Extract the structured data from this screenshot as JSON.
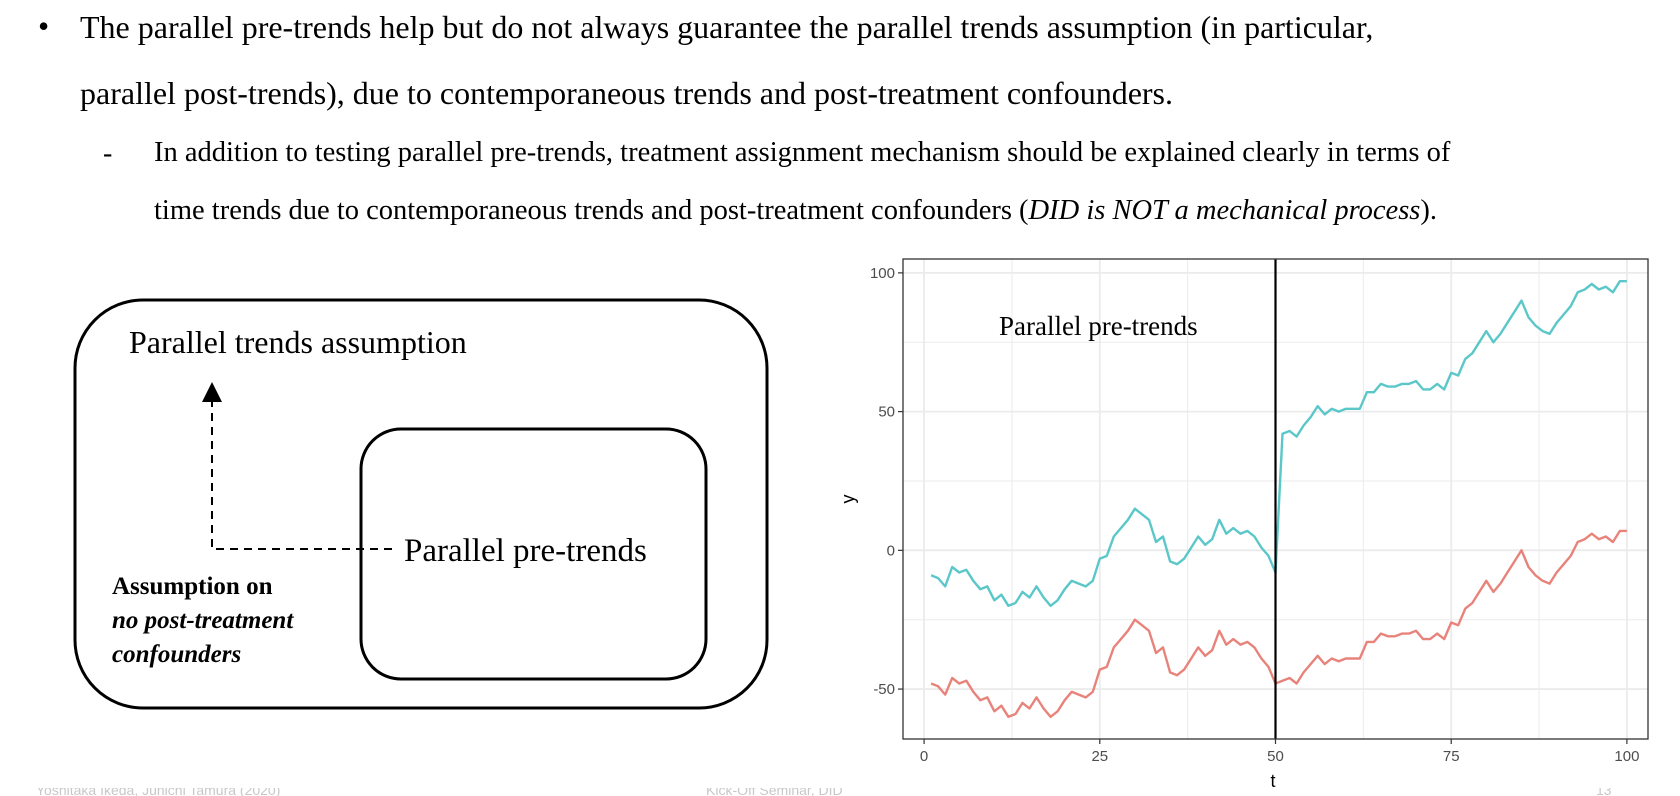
{
  "text": {
    "bullet_marker": "•",
    "bullet_line1": "The parallel pre-trends help but do not always guarantee the parallel trends assumption (in particular,",
    "bullet_line2": "parallel post-trends), due to contemporaneous trends and post-treatment confounders.",
    "sub_marker": "-",
    "sub_line1": "In addition to testing parallel pre-trends, treatment assignment mechanism should be explained clearly in terms of",
    "sub_line2_a": "time trends due to contemporaneous trends and post-treatment confounders (",
    "sub_line2_italic": "DID is NOT a mechanical process",
    "sub_line2_b": ")."
  },
  "diagram": {
    "outer_label": "Parallel trends assumption",
    "inner_label": "Parallel pre-trends",
    "assumption_line1": "Assumption on",
    "assumption_line2": "no post-treatment",
    "assumption_line3": "confounders"
  },
  "footer": {
    "left": "Yoshitaka Ikeda, Junichi Tamura (2020)",
    "center": "Kick-Off Seminar, DID",
    "right": "13"
  },
  "chart_data": {
    "type": "line",
    "annotation": "Parallel pre-trends",
    "xlabel": "t",
    "ylabel": "y",
    "xlim": [
      -3,
      103
    ],
    "ylim": [
      -68,
      105
    ],
    "x_ticks": [
      0,
      25,
      50,
      75,
      100
    ],
    "y_ticks": [
      -50,
      0,
      50,
      100
    ],
    "vline_x": 50,
    "grid": true,
    "colors": {
      "upper": "#5bc7c9",
      "lower": "#e8837b",
      "vline": "#000000",
      "grid": "#ebebeb"
    },
    "series": [
      {
        "key": "upper",
        "x": [
          1,
          2,
          3,
          4,
          5,
          6,
          7,
          8,
          9,
          10,
          11,
          12,
          13,
          14,
          15,
          16,
          17,
          18,
          19,
          20,
          21,
          22,
          23,
          24,
          25,
          26,
          27,
          28,
          29,
          30,
          31,
          32,
          33,
          34,
          35,
          36,
          37,
          38,
          39,
          40,
          41,
          42,
          43,
          44,
          45,
          46,
          47,
          48,
          49,
          50,
          51,
          52,
          53,
          54,
          55,
          56,
          57,
          58,
          59,
          60,
          61,
          62,
          63,
          64,
          65,
          66,
          67,
          68,
          69,
          70,
          71,
          72,
          73,
          74,
          75,
          76,
          77,
          78,
          79,
          80,
          81,
          82,
          83,
          84,
          85,
          86,
          87,
          88,
          89,
          90,
          91,
          92,
          93,
          94,
          95,
          96,
          97,
          98,
          99,
          100
        ],
        "values": [
          -9,
          -10,
          -13,
          -6,
          -8,
          -7,
          -11,
          -14,
          -13,
          -18,
          -16,
          -20,
          -19,
          -15,
          -17,
          -13,
          -17,
          -20,
          -18,
          -14,
          -11,
          -12,
          -13,
          -11,
          -3,
          -2,
          5,
          8,
          11,
          15,
          13,
          11,
          3,
          5,
          -4,
          -5,
          -3,
          1,
          5,
          2,
          4,
          11,
          6,
          8,
          6,
          7,
          5,
          1,
          -2,
          -8,
          42,
          43,
          41,
          45,
          48,
          52,
          49,
          51,
          50,
          51,
          51,
          51,
          57,
          57,
          60,
          59,
          59,
          60,
          60,
          61,
          58,
          58,
          60,
          58,
          64,
          63,
          69,
          71,
          75,
          79,
          75,
          78,
          82,
          86,
          90,
          84,
          81,
          79,
          78,
          82,
          85,
          88,
          93,
          94,
          96,
          94,
          95,
          93,
          97,
          97
        ]
      },
      {
        "key": "lower",
        "x": [
          1,
          2,
          3,
          4,
          5,
          6,
          7,
          8,
          9,
          10,
          11,
          12,
          13,
          14,
          15,
          16,
          17,
          18,
          19,
          20,
          21,
          22,
          23,
          24,
          25,
          26,
          27,
          28,
          29,
          30,
          31,
          32,
          33,
          34,
          35,
          36,
          37,
          38,
          39,
          40,
          41,
          42,
          43,
          44,
          45,
          46,
          47,
          48,
          49,
          50,
          51,
          52,
          53,
          54,
          55,
          56,
          57,
          58,
          59,
          60,
          61,
          62,
          63,
          64,
          65,
          66,
          67,
          68,
          69,
          70,
          71,
          72,
          73,
          74,
          75,
          76,
          77,
          78,
          79,
          80,
          81,
          82,
          83,
          84,
          85,
          86,
          87,
          88,
          89,
          90,
          91,
          92,
          93,
          94,
          95,
          96,
          97,
          98,
          99,
          100
        ],
        "values": [
          -48,
          -49,
          -52,
          -46,
          -48,
          -47,
          -51,
          -54,
          -53,
          -58,
          -56,
          -60,
          -59,
          -55,
          -57,
          -53,
          -57,
          -60,
          -58,
          -54,
          -51,
          -52,
          -53,
          -51,
          -43,
          -42,
          -35,
          -32,
          -29,
          -25,
          -27,
          -29,
          -37,
          -35,
          -44,
          -45,
          -43,
          -39,
          -35,
          -38,
          -36,
          -29,
          -34,
          -32,
          -34,
          -33,
          -35,
          -39,
          -42,
          -48,
          -47,
          -46,
          -48,
          -44,
          -41,
          -38,
          -41,
          -39,
          -40,
          -39,
          -39,
          -39,
          -33,
          -33,
          -30,
          -31,
          -31,
          -30,
          -30,
          -29,
          -32,
          -32,
          -30,
          -32,
          -26,
          -27,
          -21,
          -19,
          -15,
          -11,
          -15,
          -12,
          -8,
          -4,
          0,
          -6,
          -9,
          -11,
          -12,
          -8,
          -5,
          -2,
          3,
          4,
          6,
          4,
          5,
          3,
          7,
          7
        ]
      }
    ]
  }
}
